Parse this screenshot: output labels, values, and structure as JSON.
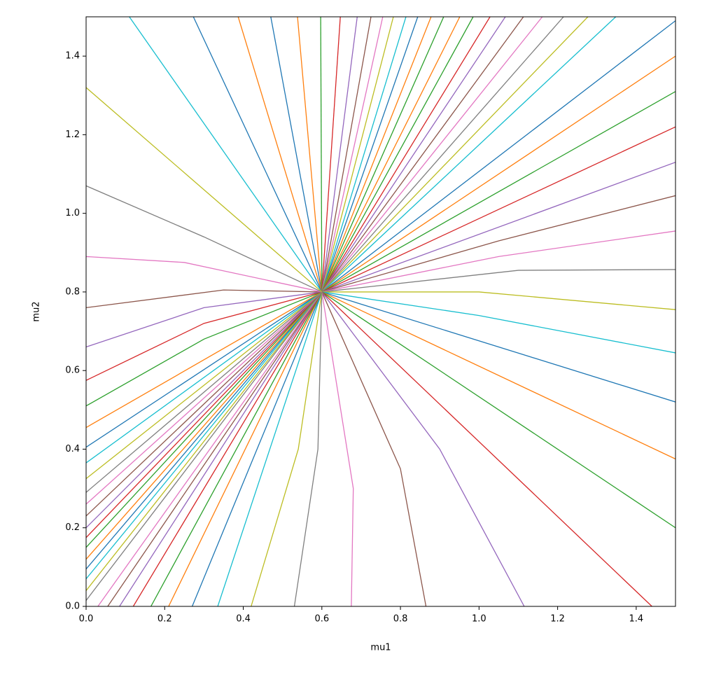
{
  "chart_data": {
    "type": "line",
    "xlabel": "mu1",
    "ylabel": "mu2",
    "xlim": [
      0,
      1.5
    ],
    "ylim": [
      0,
      1.5
    ],
    "xticks": [
      {
        "value": 0,
        "label": "0.0"
      },
      {
        "value": 0.2,
        "label": "0.2"
      },
      {
        "value": 0.4,
        "label": "0.4"
      },
      {
        "value": 0.6,
        "label": "0.6"
      },
      {
        "value": 0.8,
        "label": "0.8"
      },
      {
        "value": 1.0,
        "label": "1.0"
      },
      {
        "value": 1.2,
        "label": "1.2"
      },
      {
        "value": 1.4,
        "label": "1.4"
      }
    ],
    "yticks": [
      {
        "value": 0,
        "label": "0.0"
      },
      {
        "value": 0.2,
        "label": "0.2"
      },
      {
        "value": 0.4,
        "label": "0.4"
      },
      {
        "value": 0.6,
        "label": "0.6"
      },
      {
        "value": 0.8,
        "label": "0.8"
      },
      {
        "value": 1.0,
        "label": "1.0"
      },
      {
        "value": 1.2,
        "label": "1.2"
      },
      {
        "value": 1.4,
        "label": "1.4"
      }
    ],
    "series": [
      {
        "color": "#17becf",
        "x": [
          0.11,
          0.6
        ],
        "values": [
          1.5,
          0.8
        ]
      },
      {
        "color": "#1f77b4",
        "x": [
          0.273,
          0.6
        ],
        "values": [
          1.5,
          0.8
        ]
      },
      {
        "color": "#ff7f0e",
        "x": [
          0.387,
          0.6
        ],
        "values": [
          1.5,
          0.8
        ]
      },
      {
        "color": "#1f77b4",
        "x": [
          0.47,
          0.6
        ],
        "values": [
          1.5,
          0.8
        ]
      },
      {
        "color": "#ff7f0e",
        "x": [
          0.538,
          0.6
        ],
        "values": [
          1.5,
          0.8
        ]
      },
      {
        "color": "#2ca02c",
        "x": [
          0.597,
          0.6
        ],
        "values": [
          1.5,
          0.8
        ]
      },
      {
        "color": "#d62728",
        "x": [
          0.647,
          0.6
        ],
        "values": [
          1.5,
          0.8
        ]
      },
      {
        "color": "#9467bd",
        "x": [
          0.69,
          0.6
        ],
        "values": [
          1.5,
          0.8
        ]
      },
      {
        "color": "#8c564b",
        "x": [
          0.725,
          0.6
        ],
        "values": [
          1.5,
          0.8
        ]
      },
      {
        "color": "#e377c2",
        "x": [
          0.755,
          0.6
        ],
        "values": [
          1.5,
          0.8
        ]
      },
      {
        "color": "#bcbd22",
        "x": [
          0.782,
          0.6
        ],
        "values": [
          1.5,
          0.8
        ]
      },
      {
        "color": "#17becf",
        "x": [
          0.814,
          0.6
        ],
        "values": [
          1.5,
          0.8
        ]
      },
      {
        "color": "#1f77b4",
        "x": [
          0.844,
          0.6
        ],
        "values": [
          1.5,
          0.8
        ]
      },
      {
        "color": "#ff7f0e",
        "x": [
          0.878,
          0.6
        ],
        "values": [
          1.5,
          0.8
        ]
      },
      {
        "color": "#2ca02c",
        "x": [
          0.91,
          0.6
        ],
        "values": [
          1.5,
          0.8
        ]
      },
      {
        "color": "#ff7f0e",
        "x": [
          0.951,
          0.6
        ],
        "values": [
          1.5,
          0.8
        ]
      },
      {
        "color": "#2ca02c",
        "x": [
          0.985,
          0.6
        ],
        "values": [
          1.5,
          0.8
        ]
      },
      {
        "color": "#d62728",
        "x": [
          1.028,
          0.6
        ],
        "values": [
          1.5,
          0.8
        ]
      },
      {
        "color": "#9467bd",
        "x": [
          1.067,
          0.6
        ],
        "values": [
          1.5,
          0.8
        ]
      },
      {
        "color": "#8c564b",
        "x": [
          1.113,
          0.6
        ],
        "values": [
          1.5,
          0.8
        ]
      },
      {
        "color": "#e377c2",
        "x": [
          1.161,
          0.6
        ],
        "values": [
          1.5,
          0.8
        ]
      },
      {
        "color": "#7f7f7f",
        "x": [
          1.215,
          0.6
        ],
        "values": [
          1.5,
          0.8
        ]
      },
      {
        "color": "#bcbd22",
        "x": [
          1.277,
          0.6
        ],
        "values": [
          1.5,
          0.8
        ]
      },
      {
        "color": "#17becf",
        "x": [
          1.348,
          0.6
        ],
        "values": [
          1.5,
          0.8
        ]
      },
      {
        "color": "#1f77b4",
        "x": [
          1.5,
          0.6
        ],
        "values": [
          1.49,
          0.8
        ]
      },
      {
        "color": "#ff7f0e",
        "x": [
          1.5,
          0.6
        ],
        "values": [
          1.4,
          0.8
        ]
      },
      {
        "color": "#2ca02c",
        "x": [
          1.5,
          0.6
        ],
        "values": [
          1.31,
          0.8
        ]
      },
      {
        "color": "#d62728",
        "x": [
          1.5,
          0.6
        ],
        "values": [
          1.22,
          0.8
        ]
      },
      {
        "color": "#9467bd",
        "x": [
          1.5,
          0.6
        ],
        "values": [
          1.13,
          0.8
        ]
      },
      {
        "color": "#8c564b",
        "x": [
          1.5,
          1.05,
          0.6
        ],
        "values": [
          1.045,
          0.93,
          0.8
        ]
      },
      {
        "color": "#e377c2",
        "x": [
          1.5,
          1.05,
          0.6
        ],
        "values": [
          0.955,
          0.89,
          0.8
        ]
      },
      {
        "color": "#7f7f7f",
        "x": [
          1.5,
          1.1,
          0.6
        ],
        "values": [
          0.857,
          0.855,
          0.8
        ]
      },
      {
        "color": "#bcbd22",
        "x": [
          1.5,
          1.0,
          0.6
        ],
        "values": [
          0.755,
          0.8,
          0.8
        ]
      },
      {
        "color": "#17becf",
        "x": [
          1.5,
          1.0,
          0.6
        ],
        "values": [
          0.645,
          0.74,
          0.8
        ]
      },
      {
        "color": "#1f77b4",
        "x": [
          1.5,
          0.6
        ],
        "values": [
          0.52,
          0.8
        ]
      },
      {
        "color": "#ff7f0e",
        "x": [
          1.5,
          0.6
        ],
        "values": [
          0.375,
          0.8
        ]
      },
      {
        "color": "#2ca02c",
        "x": [
          1.5,
          0.6
        ],
        "values": [
          0.2,
          0.8
        ]
      },
      {
        "color": "#d62728",
        "x": [
          1.44,
          0.6
        ],
        "values": [
          0,
          0.8
        ]
      },
      {
        "color": "#9467bd",
        "x": [
          1.115,
          0.9,
          0.6
        ],
        "values": [
          0,
          0.4,
          0.8
        ]
      },
      {
        "color": "#8c564b",
        "x": [
          0.865,
          0.8,
          0.6
        ],
        "values": [
          0,
          0.35,
          0.8
        ]
      },
      {
        "color": "#e377c2",
        "x": [
          0.675,
          0.68,
          0.6
        ],
        "values": [
          0,
          0.3,
          0.8
        ]
      },
      {
        "color": "#7f7f7f",
        "x": [
          0.53,
          0.59,
          0.6
        ],
        "values": [
          0,
          0.4,
          0.8
        ]
      },
      {
        "color": "#bcbd22",
        "x": [
          0.42,
          0.54,
          0.6
        ],
        "values": [
          0,
          0.4,
          0.8
        ]
      },
      {
        "color": "#17becf",
        "x": [
          0.335,
          0.6
        ],
        "values": [
          0,
          0.8
        ]
      },
      {
        "color": "#1f77b4",
        "x": [
          0.27,
          0.6
        ],
        "values": [
          0,
          0.8
        ]
      },
      {
        "color": "#ff7f0e",
        "x": [
          0.21,
          0.6
        ],
        "values": [
          0,
          0.8
        ]
      },
      {
        "color": "#2ca02c",
        "x": [
          0.165,
          0.6
        ],
        "values": [
          0,
          0.8
        ]
      },
      {
        "color": "#d62728",
        "x": [
          0.12,
          0.6
        ],
        "values": [
          0,
          0.8
        ]
      },
      {
        "color": "#9467bd",
        "x": [
          0.085,
          0.6
        ],
        "values": [
          0,
          0.8
        ]
      },
      {
        "color": "#8c564b",
        "x": [
          0.055,
          0.6
        ],
        "values": [
          0,
          0.8
        ]
      },
      {
        "color": "#e377c2",
        "x": [
          0.03,
          0.6
        ],
        "values": [
          0,
          0.8
        ]
      },
      {
        "color": "#7f7f7f",
        "x": [
          0,
          0.6
        ],
        "values": [
          0.015,
          0.8
        ]
      },
      {
        "color": "#bcbd22",
        "x": [
          0,
          0.6
        ],
        "values": [
          0.04,
          0.8
        ]
      },
      {
        "color": "#17becf",
        "x": [
          0,
          0.6
        ],
        "values": [
          0.07,
          0.8
        ]
      },
      {
        "color": "#1f77b4",
        "x": [
          0,
          0.6
        ],
        "values": [
          0.095,
          0.8
        ]
      },
      {
        "color": "#ff7f0e",
        "x": [
          0,
          0.6
        ],
        "values": [
          0.12,
          0.8
        ]
      },
      {
        "color": "#2ca02c",
        "x": [
          0,
          0.6
        ],
        "values": [
          0.15,
          0.8
        ]
      },
      {
        "color": "#d62728",
        "x": [
          0,
          0.6
        ],
        "values": [
          0.175,
          0.8
        ]
      },
      {
        "color": "#9467bd",
        "x": [
          0,
          0.6
        ],
        "values": [
          0.2,
          0.8
        ]
      },
      {
        "color": "#8c564b",
        "x": [
          0,
          0.6
        ],
        "values": [
          0.23,
          0.8
        ]
      },
      {
        "color": "#e377c2",
        "x": [
          0,
          0.6
        ],
        "values": [
          0.26,
          0.8
        ]
      },
      {
        "color": "#7f7f7f",
        "x": [
          0,
          0.6
        ],
        "values": [
          0.29,
          0.8
        ]
      },
      {
        "color": "#bcbd22",
        "x": [
          0,
          0.6
        ],
        "values": [
          0.325,
          0.8
        ]
      },
      {
        "color": "#17becf",
        "x": [
          0,
          0.6
        ],
        "values": [
          0.365,
          0.8
        ]
      },
      {
        "color": "#1f77b4",
        "x": [
          0,
          0.6
        ],
        "values": [
          0.405,
          0.8
        ]
      },
      {
        "color": "#ff7f0e",
        "x": [
          0,
          0.6
        ],
        "values": [
          0.455,
          0.8
        ]
      },
      {
        "color": "#2ca02c",
        "x": [
          0,
          0.3,
          0.6
        ],
        "values": [
          0.51,
          0.68,
          0.8
        ]
      },
      {
        "color": "#d62728",
        "x": [
          0,
          0.3,
          0.6
        ],
        "values": [
          0.575,
          0.72,
          0.8
        ]
      },
      {
        "color": "#9467bd",
        "x": [
          0,
          0.3,
          0.6
        ],
        "values": [
          0.66,
          0.76,
          0.8
        ]
      },
      {
        "color": "#8c564b",
        "x": [
          0,
          0.35,
          0.6
        ],
        "values": [
          0.76,
          0.805,
          0.8
        ]
      },
      {
        "color": "#e377c2",
        "x": [
          0,
          0.25,
          0.6
        ],
        "values": [
          0.89,
          0.875,
          0.8
        ]
      },
      {
        "color": "#7f7f7f",
        "x": [
          0,
          0.3,
          0.6
        ],
        "values": [
          1.07,
          0.94,
          0.8
        ]
      },
      {
        "color": "#bcbd22",
        "x": [
          0,
          0.6
        ],
        "values": [
          1.32,
          0.8
        ]
      }
    ]
  }
}
